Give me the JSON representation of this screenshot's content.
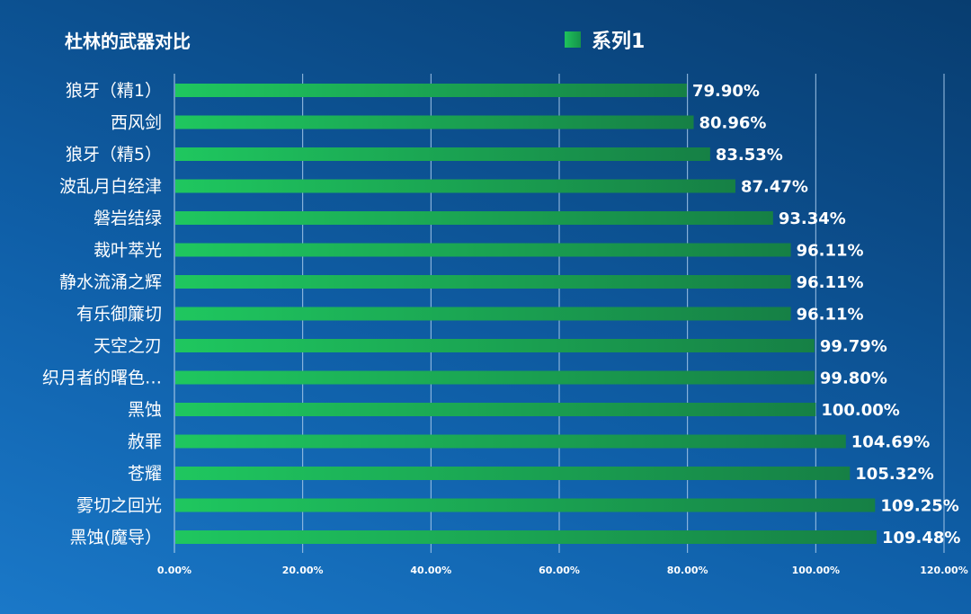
{
  "chart_data": {
    "type": "bar",
    "orientation": "horizontal",
    "title": "杜林的武器对比",
    "legend": {
      "position": "top",
      "entries": [
        "系列1"
      ]
    },
    "categories": [
      "狼牙（精1）",
      "西风剑",
      "狼牙（精5）",
      "波乱月白经津",
      "磐岩结绿",
      "裁叶萃光",
      "静水流涌之辉",
      "有乐御簾切",
      "天空之刃",
      "织月者的曙色…",
      "黑蚀",
      "赦罪",
      "苍耀",
      "雾切之回光",
      "黑蚀(魔导）"
    ],
    "series": [
      {
        "name": "系列1",
        "values": [
          79.9,
          80.96,
          83.53,
          87.47,
          93.34,
          96.11,
          96.11,
          96.11,
          99.79,
          99.8,
          100.0,
          104.69,
          105.32,
          109.25,
          109.48
        ]
      }
    ],
    "data_labels": [
      "79.90%",
      "80.96%",
      "83.53%",
      "87.47%",
      "93.34%",
      "96.11%",
      "96.11%",
      "96.11%",
      "99.79%",
      "99.80%",
      "100.00%",
      "104.69%",
      "105.32%",
      "109.25%",
      "109.48%"
    ],
    "xlim": [
      0,
      120
    ],
    "x_ticks": [
      "0.00%",
      "20.00%",
      "40.00%",
      "60.00%",
      "80.00%",
      "100.00%",
      "120.00%"
    ],
    "grid": true,
    "colors": {
      "bar_start": "#1fc75f",
      "bar_end": "#168045",
      "background": "#0d569a"
    }
  }
}
